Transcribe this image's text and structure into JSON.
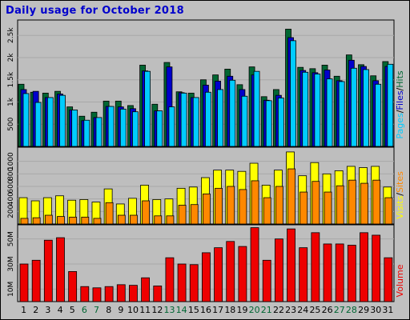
{
  "title": "Daily usage for October 2018",
  "colors": {
    "hits": "#006633",
    "files": "#0000cc",
    "pages": "#00ccff",
    "visits": "#ffff00",
    "sites": "#ff8800",
    "volume": "#ee0000",
    "weekend": "#006633",
    "background": "#c0c0c0",
    "plot": "#bebebe"
  },
  "right_labels": {
    "top": {
      "pages": "Pages",
      "files": "Files",
      "hits": "Hits"
    },
    "mid": {
      "visits": "Visits",
      "sites": "Sites"
    },
    "bot": {
      "volume": "Volume"
    }
  },
  "chart_data": [
    {
      "type": "bar",
      "title": "Daily usage for October 2018",
      "categories": [
        "1",
        "2",
        "3",
        "4",
        "5",
        "6",
        "7",
        "8",
        "9",
        "10",
        "11",
        "12",
        "13",
        "14",
        "15",
        "16",
        "17",
        "18",
        "19",
        "20",
        "21",
        "22",
        "23",
        "24",
        "25",
        "26",
        "27",
        "28",
        "29",
        "30",
        "31"
      ],
      "weekend_days": [
        "6",
        "7",
        "13",
        "14",
        "20",
        "21",
        "27",
        "28"
      ],
      "y_ticks": [
        "500",
        "1k",
        "1.5k",
        "2k",
        "2.5k"
      ],
      "ylim": [
        0,
        2810
      ],
      "grid": true,
      "series": [
        {
          "name": "Hits",
          "values": [
            1400,
            1220,
            1200,
            1240,
            890,
            680,
            770,
            1020,
            1020,
            920,
            1830,
            950,
            1890,
            1230,
            1200,
            1500,
            1610,
            1740,
            1390,
            1790,
            1120,
            1280,
            2640,
            1780,
            1750,
            1830,
            1580,
            2060,
            1840,
            1590,
            1910
          ]
        },
        {
          "name": "Files",
          "values": [
            1280,
            1240,
            1100,
            1180,
            820,
            580,
            650,
            900,
            890,
            850,
            1700,
            800,
            1790,
            1210,
            1100,
            1380,
            1470,
            1580,
            1280,
            1610,
            1040,
            1150,
            2450,
            1710,
            1660,
            1720,
            1480,
            1940,
            1800,
            1480,
            1800
          ]
        },
        {
          "name": "Pages",
          "values": [
            1190,
            990,
            1100,
            1150,
            820,
            590,
            650,
            900,
            840,
            780,
            1690,
            800,
            890,
            1200,
            1100,
            1220,
            1280,
            1490,
            1130,
            1690,
            1030,
            1090,
            2380,
            1670,
            1630,
            1520,
            1460,
            1760,
            1730,
            1400,
            1850
          ]
        }
      ]
    },
    {
      "type": "bar",
      "categories": [
        "1",
        "2",
        "3",
        "4",
        "5",
        "6",
        "7",
        "8",
        "9",
        "10",
        "11",
        "12",
        "13",
        "14",
        "15",
        "16",
        "17",
        "18",
        "19",
        "20",
        "21",
        "22",
        "23",
        "24",
        "25",
        "26",
        "27",
        "28",
        "29",
        "30",
        "31"
      ],
      "y_ticks": [
        "200",
        "400",
        "600",
        "800",
        "1000"
      ],
      "ylim": [
        0,
        1200
      ],
      "grid": true,
      "series": [
        {
          "name": "Visits",
          "values": [
            420,
            370,
            420,
            450,
            380,
            390,
            350,
            560,
            320,
            410,
            620,
            390,
            400,
            570,
            590,
            740,
            860,
            860,
            840,
            970,
            620,
            860,
            1150,
            770,
            980,
            800,
            850,
            920,
            900,
            920,
            590
          ]
        },
        {
          "name": "Sites",
          "values": [
            90,
            100,
            140,
            120,
            110,
            110,
            90,
            340,
            140,
            140,
            370,
            130,
            130,
            300,
            310,
            480,
            570,
            600,
            550,
            690,
            420,
            600,
            880,
            510,
            680,
            510,
            610,
            700,
            650,
            700,
            420
          ]
        }
      ]
    },
    {
      "type": "bar",
      "categories": [
        "1",
        "2",
        "3",
        "4",
        "5",
        "6",
        "7",
        "8",
        "9",
        "10",
        "11",
        "12",
        "13",
        "14",
        "15",
        "16",
        "17",
        "18",
        "19",
        "20",
        "21",
        "22",
        "23",
        "24",
        "25",
        "26",
        "27",
        "28",
        "29",
        "30",
        "31"
      ],
      "y_ticks": [
        "10M",
        "30M",
        "50M"
      ],
      "ylim": [
        0,
        60
      ],
      "grid": true,
      "series": [
        {
          "name": "Volume",
          "values": [
            30,
            33,
            49,
            51,
            24,
            12,
            11,
            12,
            13.5,
            13,
            19,
            12.5,
            35,
            30,
            29.5,
            39,
            43,
            48,
            44,
            59,
            33,
            50,
            58,
            43,
            55,
            46,
            46,
            45,
            55,
            53,
            35
          ]
        }
      ]
    }
  ]
}
